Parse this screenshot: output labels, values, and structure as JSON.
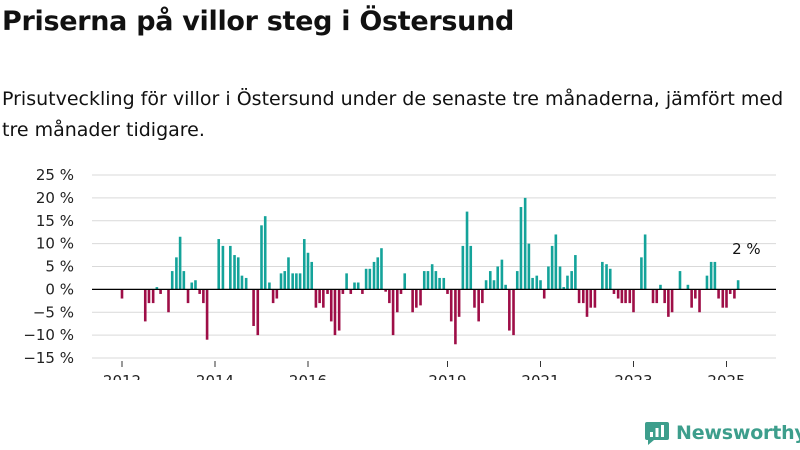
{
  "title": "Priserna på villor steg i Östersund",
  "subtitle": "Prisutveckling för villor i Östersund under de senaste tre månaderna, jämfört med tre månader tidigare.",
  "logo": {
    "text": "Newsworthy",
    "icon": "bar-chart-logo-icon"
  },
  "colors": {
    "positive": "#14a39a",
    "negative": "#9e0e47",
    "axis": "#000000",
    "grid": "#d9d9d9"
  },
  "chart_data": {
    "type": "bar",
    "x_axis": {
      "ticks": [
        "2012",
        "2014",
        "2016",
        "2019",
        "2021",
        "2023",
        "2025"
      ],
      "tick_values": [
        2012,
        2014,
        2016,
        2019,
        2021,
        2023,
        2025
      ]
    },
    "y_axis": {
      "ticks": [
        "25 %",
        "20 %",
        "15 %",
        "10 %",
        "5 %",
        "0 %",
        "−5 %",
        "−10 %",
        "−15 %"
      ],
      "range": [
        -15,
        25
      ],
      "unit": "%"
    },
    "grid": true,
    "annotation": {
      "text": "2 %",
      "x": 2025.25,
      "y": 2
    },
    "x": [
      2012.0,
      2012.08,
      2012.17,
      2012.25,
      2012.33,
      2012.42,
      2012.5,
      2012.58,
      2012.67,
      2012.75,
      2012.83,
      2012.92,
      2013.0,
      2013.08,
      2013.17,
      2013.25,
      2013.33,
      2013.42,
      2013.5,
      2013.58,
      2013.67,
      2013.75,
      2013.83,
      2013.92,
      2014.0,
      2014.08,
      2014.17,
      2014.25,
      2014.33,
      2014.42,
      2014.5,
      2014.58,
      2014.67,
      2014.75,
      2014.83,
      2014.92,
      2015.0,
      2015.08,
      2015.17,
      2015.25,
      2015.33,
      2015.42,
      2015.5,
      2015.58,
      2015.67,
      2015.75,
      2015.83,
      2015.92,
      2016.0,
      2016.08,
      2016.17,
      2016.25,
      2016.33,
      2016.42,
      2016.5,
      2016.58,
      2016.67,
      2016.75,
      2016.83,
      2016.92,
      2017.0,
      2017.08,
      2017.17,
      2017.25,
      2017.33,
      2017.42,
      2017.5,
      2017.58,
      2017.67,
      2017.75,
      2017.83,
      2017.92,
      2018.0,
      2018.08,
      2018.17,
      2018.25,
      2018.33,
      2018.42,
      2018.5,
      2018.58,
      2018.67,
      2018.75,
      2018.83,
      2018.92,
      2019.0,
      2019.08,
      2019.17,
      2019.25,
      2019.33,
      2019.42,
      2019.5,
      2019.58,
      2019.67,
      2019.75,
      2019.83,
      2019.92,
      2020.0,
      2020.08,
      2020.17,
      2020.25,
      2020.33,
      2020.42,
      2020.5,
      2020.58,
      2020.67,
      2020.75,
      2020.83,
      2020.92,
      2021.0,
      2021.08,
      2021.17,
      2021.25,
      2021.33,
      2021.42,
      2021.5,
      2021.58,
      2021.67,
      2021.75,
      2021.83,
      2021.92,
      2022.0,
      2022.08,
      2022.17,
      2022.25,
      2022.33,
      2022.42,
      2022.5,
      2022.58,
      2022.67,
      2022.75,
      2022.83,
      2022.92,
      2023.0,
      2023.08,
      2023.17,
      2023.25,
      2023.33,
      2023.42,
      2023.5,
      2023.58,
      2023.67,
      2023.75,
      2023.83,
      2023.92,
      2024.0,
      2024.08,
      2024.17,
      2024.25,
      2024.33,
      2024.42,
      2024.5,
      2024.58,
      2024.67,
      2024.75,
      2024.83,
      2024.92,
      2025.0,
      2025.08,
      2025.17,
      2025.25
    ],
    "values": [
      -2,
      0,
      0,
      0,
      0,
      0,
      -7,
      -3,
      -3,
      0.5,
      -1,
      0,
      -5,
      4,
      7,
      11.5,
      4,
      -3,
      1.5,
      2,
      -1,
      -3,
      -11,
      0,
      0,
      11,
      9.5,
      0,
      9.5,
      7.5,
      7,
      3,
      2.5,
      0,
      -8,
      -10,
      14,
      16,
      1.5,
      -3,
      -2,
      3.5,
      4,
      7,
      3.5,
      3.5,
      3.5,
      11,
      8,
      6,
      -4,
      -3,
      -4,
      -1,
      -7,
      -10,
      -9,
      -1,
      3.5,
      -1,
      1.5,
      1.5,
      -1,
      4.5,
      4.5,
      6,
      7,
      9,
      -0.5,
      -3,
      -10,
      -5,
      -1,
      3.5,
      0,
      -5,
      -4,
      -3.5,
      4,
      4,
      5.5,
      4,
      2.5,
      2.5,
      -1,
      -7,
      -12,
      -6,
      9.5,
      17,
      9.5,
      -4,
      -7,
      -3,
      2,
      4,
      2,
      5,
      6.5,
      1,
      -9,
      -10,
      4,
      18,
      20,
      10,
      2.5,
      3,
      2,
      -2,
      5,
      9.5,
      12,
      5,
      0.5,
      3,
      4,
      7.5,
      -3,
      -3,
      -6,
      -4,
      -4,
      0,
      6,
      5.5,
      4.5,
      -1,
      -2,
      -3,
      -3,
      -3,
      -5,
      0,
      7,
      12,
      0,
      -3,
      -3,
      1,
      -3,
      -6,
      -5,
      0,
      4,
      0,
      1,
      -4,
      -2,
      -5,
      0,
      3,
      6,
      6,
      -2,
      -4,
      -4,
      -1,
      -2,
      2
    ]
  }
}
